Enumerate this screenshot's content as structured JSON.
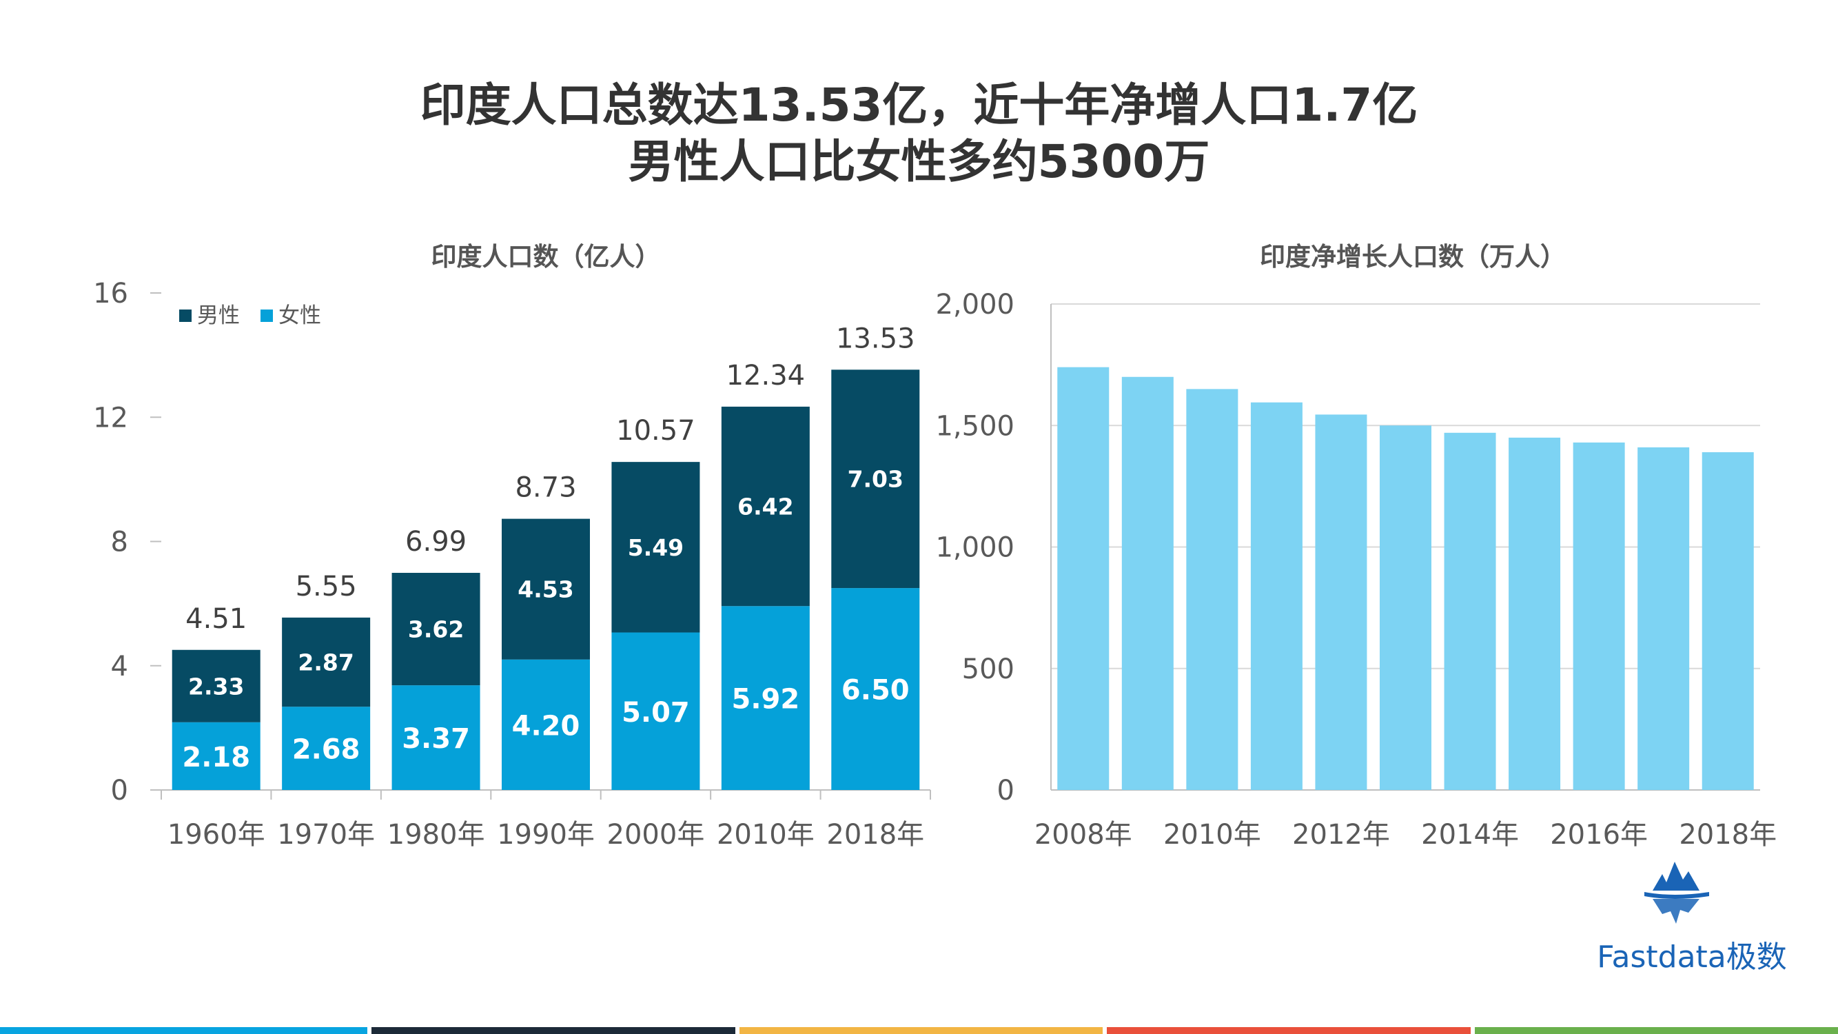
{
  "title": {
    "line1": "印度人口总数达13.53亿，近十年净增人口1.7亿",
    "line2": "男性人口比女性多约5300万"
  },
  "brand": {
    "name": "Fastdata极数",
    "color": "#1a64b6",
    "icon": "iceberg-logo-icon"
  },
  "footer_stripes": [
    "#08a4e0",
    "#1c2a38",
    "#f2b544",
    "#e9503a",
    "#6ab04c"
  ],
  "chart_data": [
    {
      "type": "bar",
      "stacked": true,
      "title": "印度人口数（亿人）",
      "categories": [
        "1960年",
        "1970年",
        "1980年",
        "1990年",
        "2000年",
        "2010年",
        "2018年"
      ],
      "series": [
        {
          "name": "女性",
          "color": "#05a1d9",
          "values": [
            2.18,
            2.68,
            3.37,
            4.2,
            5.07,
            5.92,
            6.5
          ]
        },
        {
          "name": "男性",
          "color": "#064b64",
          "values": [
            2.33,
            2.87,
            3.62,
            4.53,
            5.49,
            6.42,
            7.03
          ]
        }
      ],
      "totals": [
        "4.51",
        "5.55",
        "6.99",
        "8.73",
        "10.57",
        "12.34",
        "13.53"
      ],
      "female_labels": [
        "2.18",
        "2.68",
        "3.37",
        "4.20",
        "5.07",
        "5.92",
        "6.50"
      ],
      "male_labels": [
        "2.33",
        "2.87",
        "3.62",
        "4.53",
        "5.49",
        "6.42",
        "7.03"
      ],
      "ylim": [
        0,
        16
      ],
      "yticks": [
        "0",
        "4",
        "8",
        "12",
        "16"
      ],
      "legend": [
        {
          "label": "男性",
          "color": "#064b64"
        },
        {
          "label": "女性",
          "color": "#05a1d9"
        }
      ],
      "legend_position": "top-left",
      "grid": false
    },
    {
      "type": "bar",
      "title": "印度净增长人口数（万人）",
      "categories": [
        "2008年",
        "2009年",
        "2010年",
        "2011年",
        "2012年",
        "2013年",
        "2014年",
        "2015年",
        "2016年",
        "2017年",
        "2018年"
      ],
      "xticklabels_shown": [
        "2008年",
        "2010年",
        "2012年",
        "2014年",
        "2016年",
        "2018年"
      ],
      "values": [
        1740,
        1700,
        1650,
        1595,
        1545,
        1500,
        1470,
        1450,
        1430,
        1410,
        1390
      ],
      "color": "#7dd3f3",
      "ylim": [
        0,
        2000
      ],
      "yticks": [
        "0",
        "500",
        "1,000",
        "1,500",
        "2,000"
      ],
      "grid": true
    }
  ]
}
